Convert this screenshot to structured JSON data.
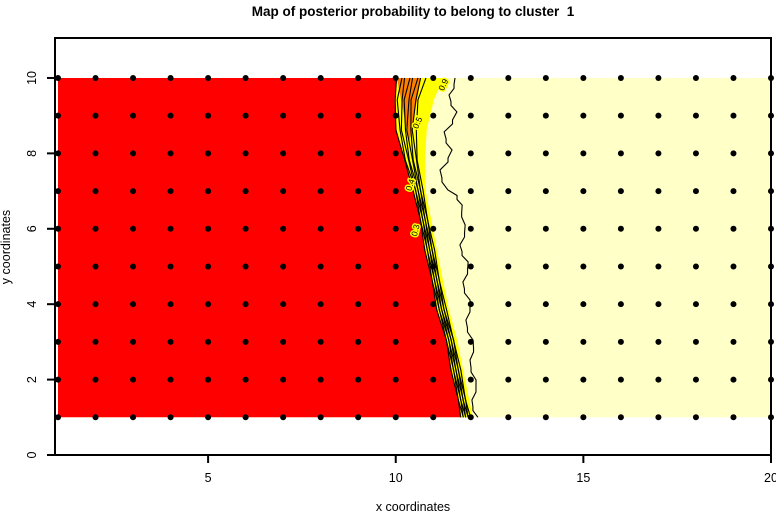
{
  "title": "Map of posterior probability to belong to cluster  1",
  "chart_data": {
    "type": "filled-contour",
    "title": "Map of posterior probability to belong to cluster  1",
    "xlabel": "x coordinates",
    "ylabel": "y coordinates",
    "x_ticks": [
      5,
      10,
      15,
      20
    ],
    "y_ticks": [
      0,
      2,
      4,
      6,
      8,
      10
    ],
    "xlim": [
      0.92,
      20
    ],
    "ylim": [
      0,
      11.06
    ],
    "grid": false,
    "fill_region": {
      "x0": 1,
      "x1": 20,
      "y0": 1,
      "y1": 10
    },
    "palette": {
      "low_prob_fill": "#FF0000",
      "band2_fill": "#FF8000",
      "band3_fill": "#FFFF00",
      "high_prob_fill": "#FFFFC8",
      "points": "#000000",
      "contour_lines": "#000000"
    },
    "point_grid": {
      "x_start": 1,
      "x_end": 20,
      "y_start": 1,
      "y_end": 10,
      "step": 1,
      "radius": 3
    },
    "boundary_centerline": [
      [
        10.6,
        10.0
      ],
      [
        10.44,
        9.42
      ],
      [
        10.38,
        8.62
      ],
      [
        10.46,
        7.82
      ],
      [
        10.6,
        7.03
      ],
      [
        10.76,
        6.23
      ],
      [
        10.91,
        5.44
      ],
      [
        11.07,
        4.64
      ],
      [
        11.23,
        3.85
      ],
      [
        11.45,
        3.05
      ],
      [
        11.61,
        2.25
      ],
      [
        11.77,
        1.46
      ],
      [
        11.87,
        1.0
      ]
    ],
    "outer_contour": [
      [
        11.58,
        10.0
      ],
      [
        11.42,
        9.55
      ],
      [
        11.63,
        9.1
      ],
      [
        11.29,
        8.57
      ],
      [
        11.5,
        8.09
      ],
      [
        11.18,
        7.56
      ],
      [
        11.39,
        7.03
      ],
      [
        11.77,
        6.63
      ],
      [
        11.85,
        6.1
      ],
      [
        11.71,
        5.57
      ],
      [
        11.93,
        5.12
      ],
      [
        11.79,
        4.59
      ],
      [
        11.98,
        4.11
      ],
      [
        11.87,
        3.58
      ],
      [
        12.06,
        3.05
      ],
      [
        11.98,
        2.52
      ],
      [
        12.14,
        1.99
      ],
      [
        12.03,
        1.46
      ],
      [
        12.19,
        1.0
      ]
    ],
    "orange_wedge": [
      [
        10.03,
        10.0
      ],
      [
        10.67,
        10.0
      ],
      [
        10.36,
        8.3
      ]
    ],
    "n_bundle_lines": 8,
    "contour_labels": [
      {
        "text": "0.5",
        "x": 10.65,
        "y": 8.78,
        "rot": -65
      },
      {
        "text": "0.9",
        "x": 11.34,
        "y": 9.79,
        "rot": -65
      },
      {
        "text": "0.4",
        "x": 10.46,
        "y": 7.14,
        "rot": -72
      },
      {
        "text": "0.3",
        "x": 10.6,
        "y": 5.94,
        "rot": -75
      }
    ]
  }
}
